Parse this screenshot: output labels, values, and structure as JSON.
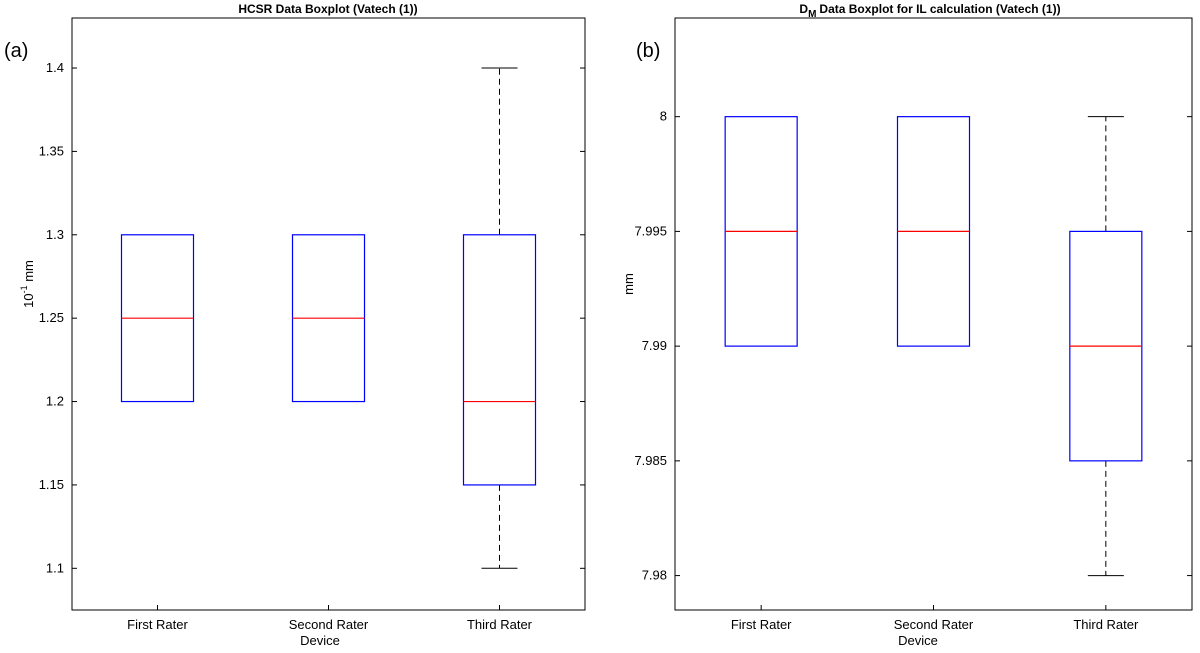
{
  "panels": {
    "a_label": "(a)",
    "b_label": "(b)"
  },
  "colors": {
    "box": "#0000ff",
    "median": "#ff0000",
    "whisker": "#000000"
  },
  "chart_data": [
    {
      "type": "boxplot",
      "title": "HCSR Data Boxplot (Vatech (1))",
      "title_main": "HCSR Data Boxplot (Vatech (1))",
      "title_sub": "",
      "title_rest": "",
      "xlabel": "Device",
      "ylabel_base": "10",
      "ylabel_sup": "-1",
      "ylabel_rest": " mm",
      "ylim": [
        1.075,
        1.43
      ],
      "yticks": [
        "1.1",
        "1.15",
        "1.2",
        "1.25",
        "1.3",
        "1.35",
        "1.4"
      ],
      "categories": [
        "First Rater",
        "Second Rater",
        "Third Rater"
      ],
      "boxes": [
        {
          "min": 1.2,
          "q1": 1.2,
          "median": 1.25,
          "q3": 1.3,
          "max": 1.3
        },
        {
          "min": 1.2,
          "q1": 1.2,
          "median": 1.25,
          "q3": 1.3,
          "max": 1.3
        },
        {
          "min": 1.1,
          "q1": 1.15,
          "median": 1.2,
          "q3": 1.3,
          "max": 1.4
        }
      ]
    },
    {
      "type": "boxplot",
      "title": "DM Data Boxplot for IL calculation (Vatech (1))",
      "title_main": "D",
      "title_sub": "M",
      "title_rest": "Data Boxplot for IL calculation (Vatech (1))",
      "xlabel": "Device",
      "ylabel_base": "mm",
      "ylabel_sup": "",
      "ylabel_rest": "",
      "ylim": [
        7.9785,
        8.0043
      ],
      "yticks": [
        "7.98",
        "7.985",
        "7.99",
        "7.995",
        "8"
      ],
      "categories": [
        "First Rater",
        "Second Rater",
        "Third Rater"
      ],
      "boxes": [
        {
          "min": 7.99,
          "q1": 7.99,
          "median": 7.995,
          "q3": 8.0,
          "max": 8.0
        },
        {
          "min": 7.99,
          "q1": 7.99,
          "median": 7.995,
          "q3": 8.0,
          "max": 8.0
        },
        {
          "min": 7.98,
          "q1": 7.985,
          "median": 7.99,
          "q3": 7.995,
          "max": 8.0
        }
      ]
    }
  ]
}
